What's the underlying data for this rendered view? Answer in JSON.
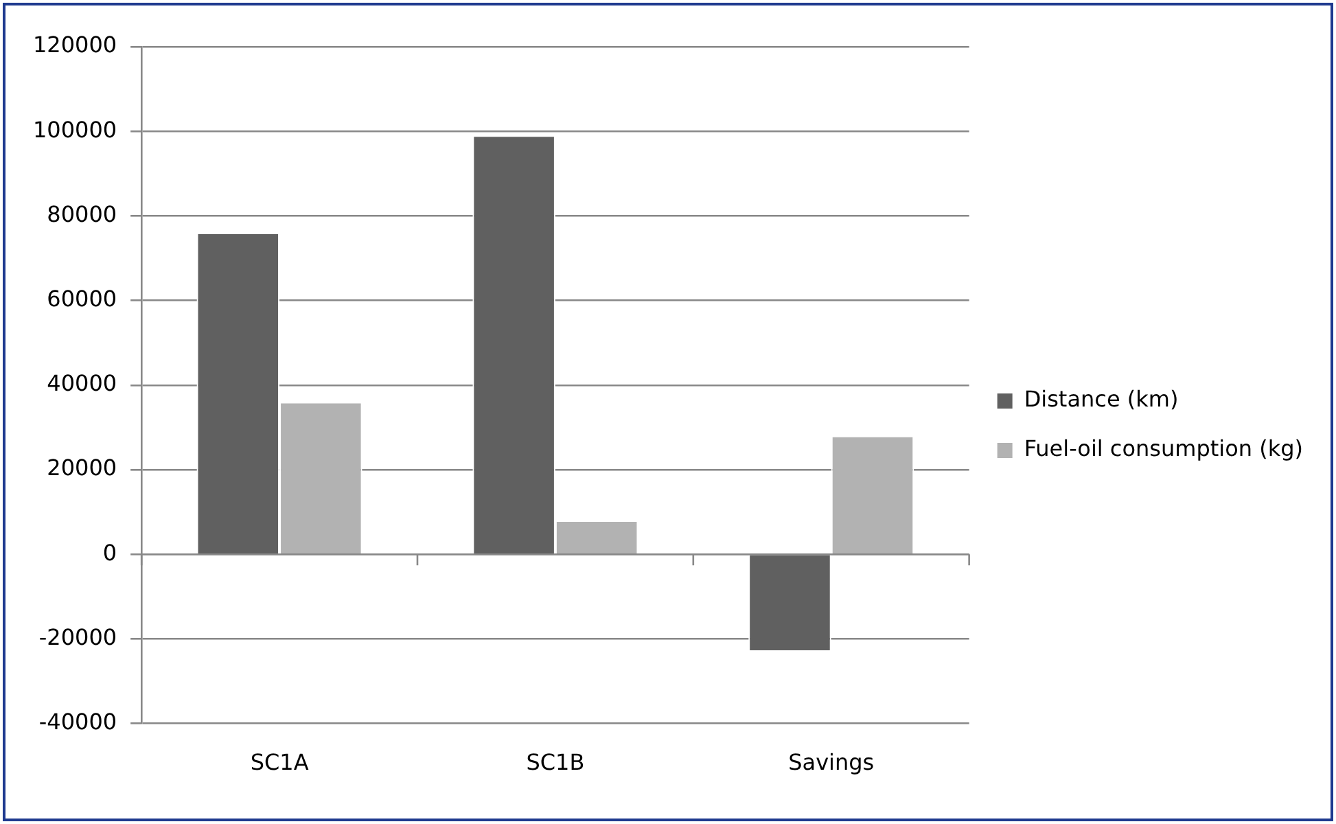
{
  "chart_data": {
    "type": "bar",
    "categories": [
      "SC1A",
      "SC1B",
      "Savings"
    ],
    "series": [
      {
        "name": "Distance (km)",
        "color": "#606060",
        "values": [
          76000,
          99000,
          -23000
        ]
      },
      {
        "name": "Fuel-oil consumption (kg)",
        "color": "#b2b2b2",
        "values": [
          36000,
          8000,
          28000
        ]
      }
    ],
    "ylim": [
      -40000,
      120000
    ],
    "yticks": [
      -40000,
      -20000,
      0,
      20000,
      40000,
      60000,
      80000,
      100000,
      120000
    ],
    "grid": "y",
    "legend": "right"
  }
}
